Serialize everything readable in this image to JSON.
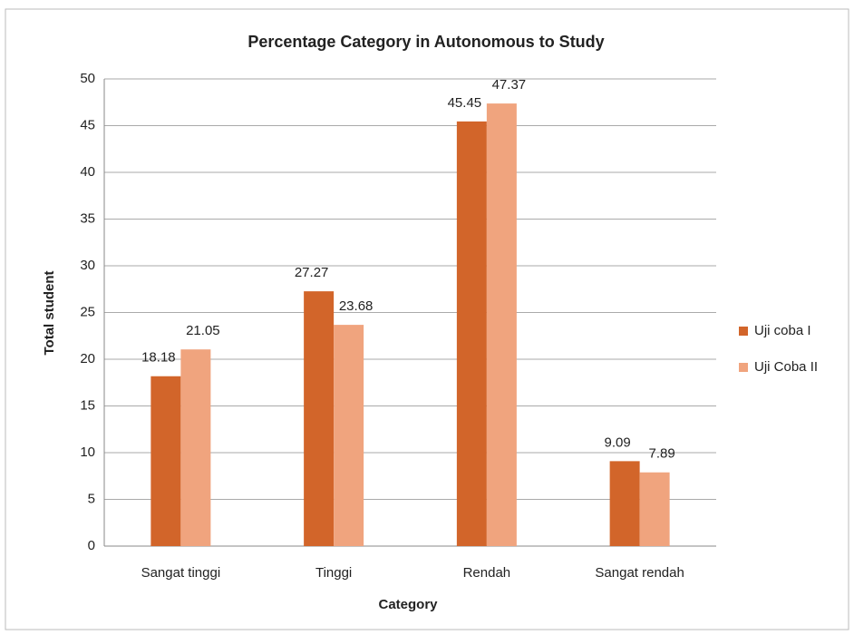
{
  "chart_data": {
    "type": "bar",
    "title": "Percentage Category in Autonomous to Study",
    "x_label": "Category",
    "y_label": "Total  student",
    "categories": [
      "Sangat tinggi",
      "Tinggi",
      "Rendah",
      "Sangat rendah"
    ],
    "series": [
      {
        "name": "Uji coba I",
        "color": "#d2652a",
        "values": [
          18.18,
          27.27,
          45.45,
          9.09
        ]
      },
      {
        "name": "Uji Coba II",
        "color": "#f0a47e",
        "values": [
          21.05,
          23.68,
          47.37,
          7.89
        ]
      }
    ],
    "ylim": [
      0,
      50
    ],
    "yticks": [
      0,
      5,
      10,
      15,
      20,
      25,
      30,
      35,
      40,
      45,
      50
    ],
    "grid": true,
    "legend": "right"
  }
}
